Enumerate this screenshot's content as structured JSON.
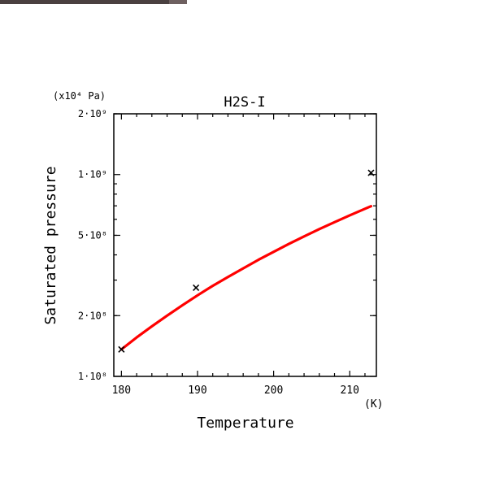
{
  "chart_data": {
    "type": "line",
    "title": "H2S-I",
    "xlabel": "Temperature",
    "xunit": "(K)",
    "ylabel": "Saturated pressure",
    "yunit": "(x10⁴ Pa)",
    "xlim": [
      179,
      213.5
    ],
    "ylim": [
      100000000,
      2000000000
    ],
    "yscale": "log",
    "grid": false,
    "x_ticks": [
      180,
      190,
      200,
      210
    ],
    "y_ticks": [
      {
        "value": 100000000,
        "label": "1·10⁸"
      },
      {
        "value": 200000000,
        "label": "2·10⁸"
      },
      {
        "value": 500000000,
        "label": "5·10⁸"
      },
      {
        "value": 1000000000,
        "label": "1·10⁹"
      },
      {
        "value": 2000000000,
        "label": "2·10⁹"
      }
    ],
    "series": [
      {
        "color": "#ff0000",
        "x": [
          180,
          182,
          184,
          186,
          188,
          190,
          192,
          194,
          196,
          198,
          200,
          202,
          204,
          206,
          208,
          210,
          212,
          212.8
        ],
        "values": [
          136000000,
          156000000,
          177000000,
          200000000,
          225000000,
          252000000,
          281000000,
          311000000,
          343000000,
          378000000,
          414000000,
          453000000,
          494000000,
          537000000,
          581000000,
          628000000,
          677000000,
          697000000
        ]
      }
    ],
    "markers": {
      "symbol": "x",
      "color": "#000000",
      "x": [
        180,
        189.8,
        212.8
      ],
      "values": [
        136000000,
        275000000,
        1020000000
      ]
    }
  }
}
